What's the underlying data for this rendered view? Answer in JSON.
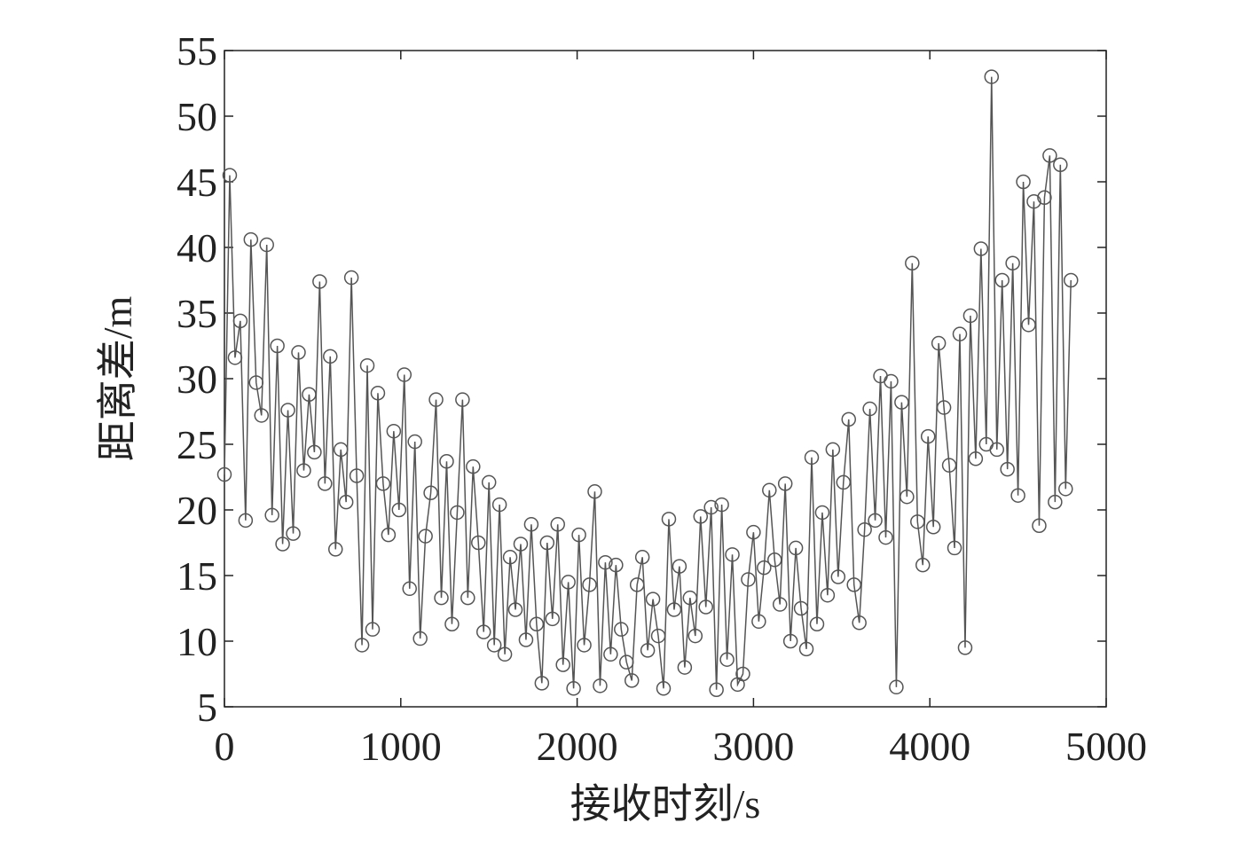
{
  "chart_data": {
    "type": "line",
    "x_label": "接收时刻/s",
    "y_label": "距离差/m",
    "xlim": [
      0,
      5000
    ],
    "xticks": [
      0,
      1000,
      2000,
      3000,
      4000,
      5000
    ],
    "ylim": [
      5,
      55
    ],
    "yticks": [
      5,
      10,
      15,
      20,
      25,
      30,
      35,
      40,
      45,
      50,
      55
    ],
    "marker": "circle",
    "x": [
      0,
      30,
      60,
      90,
      120,
      150,
      180,
      210,
      240,
      270,
      300,
      330,
      360,
      390,
      420,
      450,
      480,
      510,
      540,
      570,
      600,
      630,
      660,
      690,
      720,
      750,
      780,
      810,
      840,
      870,
      900,
      930,
      960,
      990,
      1020,
      1050,
      1080,
      1110,
      1140,
      1170,
      1200,
      1230,
      1260,
      1290,
      1320,
      1350,
      1380,
      1410,
      1440,
      1470,
      1500,
      1530,
      1560,
      1590,
      1620,
      1650,
      1680,
      1710,
      1740,
      1770,
      1800,
      1830,
      1860,
      1890,
      1920,
      1950,
      1980,
      2010,
      2040,
      2070,
      2100,
      2130,
      2160,
      2190,
      2220,
      2250,
      2280,
      2310,
      2340,
      2370,
      2400,
      2430,
      2460,
      2490,
      2520,
      2550,
      2580,
      2610,
      2640,
      2670,
      2700,
      2730,
      2760,
      2790,
      2820,
      2850,
      2880,
      2910,
      2940,
      2970,
      3000,
      3030,
      3060,
      3090,
      3120,
      3150,
      3180,
      3210,
      3240,
      3270,
      3300,
      3330,
      3360,
      3390,
      3420,
      3450,
      3480,
      3510,
      3540,
      3570,
      3600,
      3630,
      3660,
      3690,
      3720,
      3750,
      3780,
      3810,
      3840,
      3870,
      3900,
      3930,
      3960,
      3990,
      4020,
      4050,
      4080,
      4110,
      4140,
      4170,
      4200,
      4230,
      4260,
      4290,
      4320,
      4350,
      4380,
      4410,
      4440,
      4470,
      4500,
      4530,
      4560,
      4590,
      4620,
      4650,
      4680,
      4710,
      4740,
      4770,
      4800
    ],
    "series": [
      {
        "color": "#555555",
        "values": [
          22.7,
          45.5,
          31.6,
          34.4,
          19.2,
          40.6,
          29.7,
          27.2,
          40.2,
          19.6,
          32.5,
          17.4,
          27.6,
          18.2,
          32.0,
          23.0,
          28.8,
          24.4,
          37.4,
          22.0,
          31.7,
          17.0,
          24.6,
          20.6,
          37.7,
          22.6,
          9.7,
          31.0,
          10.9,
          28.9,
          22.0,
          18.1,
          26.0,
          20.0,
          30.3,
          14.0,
          25.2,
          10.2,
          18.0,
          21.3,
          28.4,
          13.3,
          23.7,
          11.3,
          19.8,
          28.4,
          13.3,
          23.3,
          17.5,
          10.7,
          22.1,
          9.7,
          20.4,
          9.0,
          16.4,
          12.4,
          17.4,
          10.1,
          18.9,
          11.3,
          6.8,
          17.5,
          11.7,
          18.9,
          8.2,
          14.5,
          6.4,
          18.1,
          9.7,
          14.3,
          21.4,
          6.6,
          16.0,
          9.0,
          15.8,
          10.9,
          8.4,
          7.0,
          14.3,
          16.4,
          9.3,
          13.2,
          10.4,
          6.4,
          19.3,
          12.4,
          15.7,
          8.0,
          13.3,
          10.4,
          19.5,
          12.6,
          20.2,
          6.3,
          20.4,
          8.6,
          16.6,
          6.7,
          7.5,
          14.7,
          18.3,
          11.5,
          15.6,
          21.5,
          16.2,
          12.8,
          22.0,
          10.0,
          17.1,
          12.5,
          9.4,
          24.0,
          11.3,
          19.8,
          13.5,
          24.6,
          14.9,
          22.1,
          26.9,
          14.3,
          11.4,
          18.5,
          27.7,
          19.2,
          30.2,
          17.9,
          29.8,
          6.5,
          28.2,
          21.0,
          38.8,
          19.1,
          15.8,
          25.6,
          18.7,
          32.7,
          27.8,
          23.4,
          17.1,
          33.4,
          9.5,
          34.8,
          23.9,
          39.9,
          25.0,
          53.0,
          24.6,
          37.5,
          23.1,
          38.8,
          21.1,
          45.0,
          34.1,
          43.5,
          18.8,
          43.8,
          47.0,
          20.6,
          46.3,
          21.6,
          37.5
        ]
      }
    ]
  }
}
